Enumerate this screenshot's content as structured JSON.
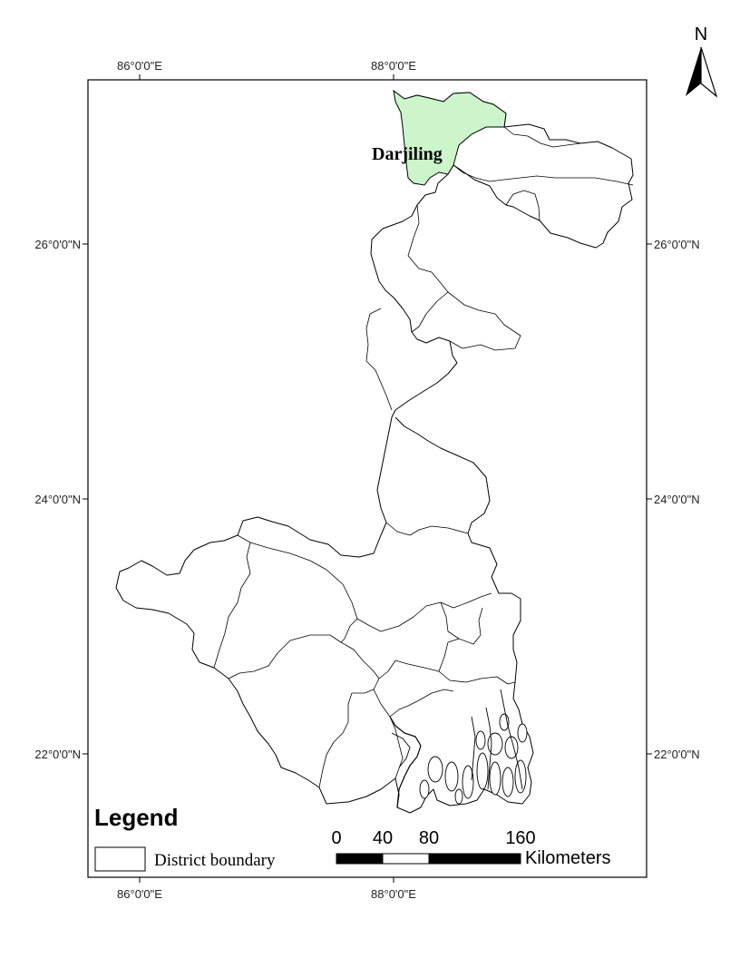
{
  "map": {
    "north_arrow": {
      "label": "N"
    },
    "longitude_labels": [
      "86°0'0\"E",
      "88°0'0\"E"
    ],
    "latitude_labels": [
      "26°0'0\"N",
      "24°0'0\"N",
      "22°0'0\"N"
    ],
    "highlighted_district": {
      "name": "Darjiling",
      "fill_color": "#ccf5cc"
    },
    "boundary_color": "#000000"
  },
  "legend": {
    "title": "Legend",
    "items": [
      {
        "label": "District boundary"
      }
    ]
  },
  "scale_bar": {
    "ticks": [
      "0",
      "40",
      "80",
      "160"
    ],
    "unit": "Kilometers"
  }
}
